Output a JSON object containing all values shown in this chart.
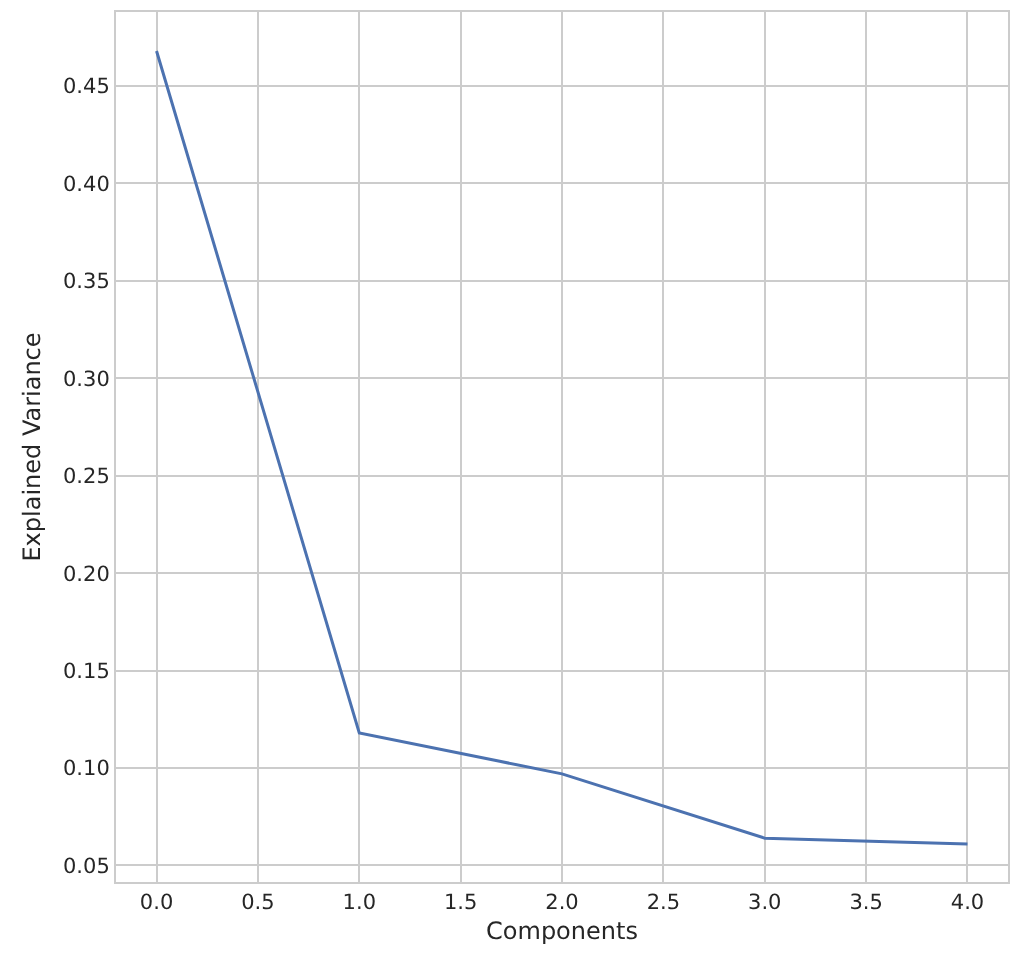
{
  "chart_data": {
    "type": "line",
    "xlabel": "Components",
    "ylabel": "Explained Variance",
    "x": [
      0,
      1,
      2,
      3,
      4
    ],
    "series": [
      {
        "color": "#4c72b0",
        "values": [
          0.468,
          0.118,
          0.097,
          0.064,
          0.061
        ]
      }
    ],
    "xlim": [
      -0.2,
      4.2
    ],
    "ylim": [
      0.0415,
      0.488
    ],
    "xticks": [
      {
        "value": 0,
        "label": "0.0"
      },
      {
        "value": 0.5,
        "label": "0.5"
      },
      {
        "value": 1,
        "label": "1.0"
      },
      {
        "value": 1.5,
        "label": "1.5"
      },
      {
        "value": 2,
        "label": "2.0"
      },
      {
        "value": 2.5,
        "label": "2.5"
      },
      {
        "value": 3,
        "label": "3.0"
      },
      {
        "value": 3.5,
        "label": "3.5"
      },
      {
        "value": 4,
        "label": "4.0"
      }
    ],
    "yticks": [
      {
        "value": 0.05,
        "label": "0.05"
      },
      {
        "value": 0.1,
        "label": "0.10"
      },
      {
        "value": 0.15,
        "label": "0.15"
      },
      {
        "value": 0.2,
        "label": "0.20"
      },
      {
        "value": 0.25,
        "label": "0.25"
      },
      {
        "value": 0.3,
        "label": "0.30"
      },
      {
        "value": 0.35,
        "label": "0.35"
      },
      {
        "value": 0.4,
        "label": "0.40"
      },
      {
        "value": 0.45,
        "label": "0.45"
      }
    ],
    "grid": true,
    "line_style": "solid"
  }
}
